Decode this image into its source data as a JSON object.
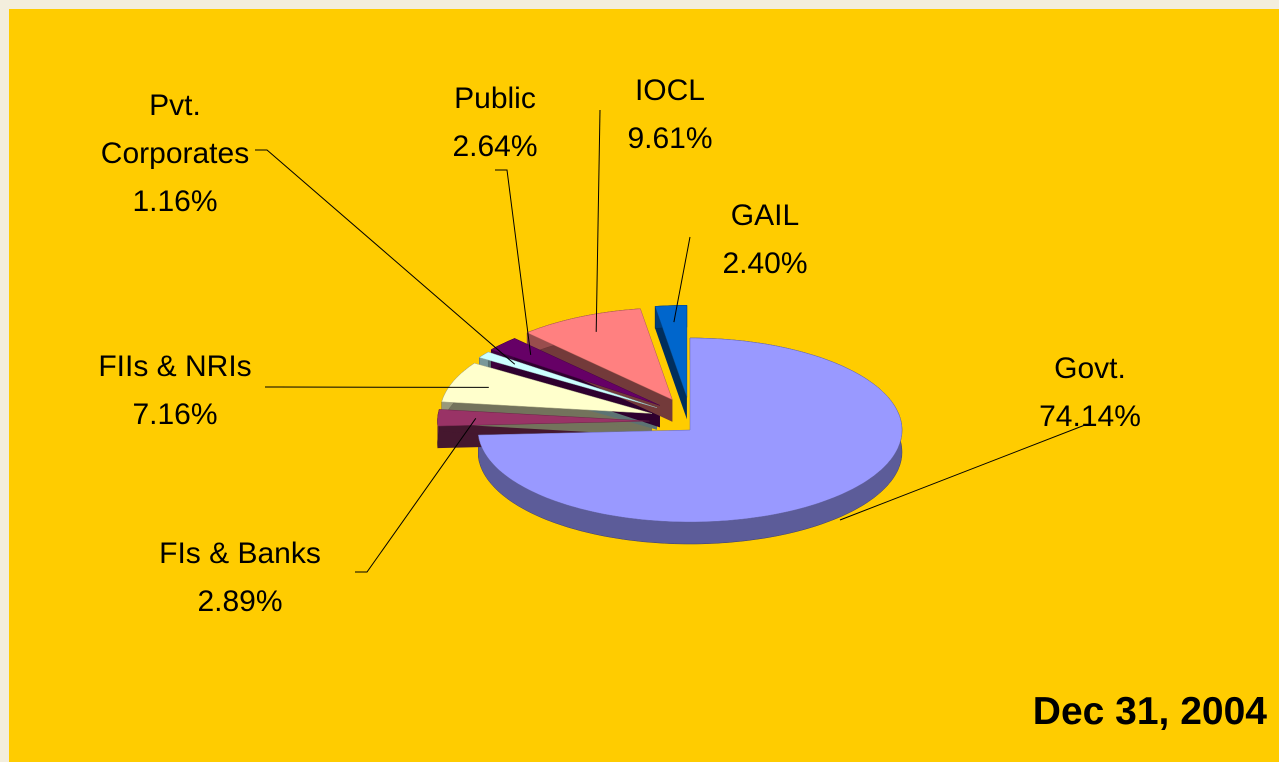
{
  "chart_data": {
    "type": "pie",
    "categories": [
      "Govt.",
      "FIs & Banks",
      "FIIs & NRIs",
      "Pvt. Corporates",
      "Public",
      "IOCL",
      "GAIL"
    ],
    "values": [
      74.14,
      2.89,
      7.16,
      1.16,
      2.64,
      9.61,
      2.4
    ],
    "value_labels": [
      "74.14%",
      "2.89%",
      "7.16%",
      "1.16%",
      "2.64%",
      "9.61%",
      "2.40%"
    ],
    "colors": [
      "#9999ff",
      "#993366",
      "#ffffcc",
      "#ccffff",
      "#660066",
      "#ff8080",
      "#0066cc"
    ],
    "annotation": "Dec 31, 2004"
  }
}
